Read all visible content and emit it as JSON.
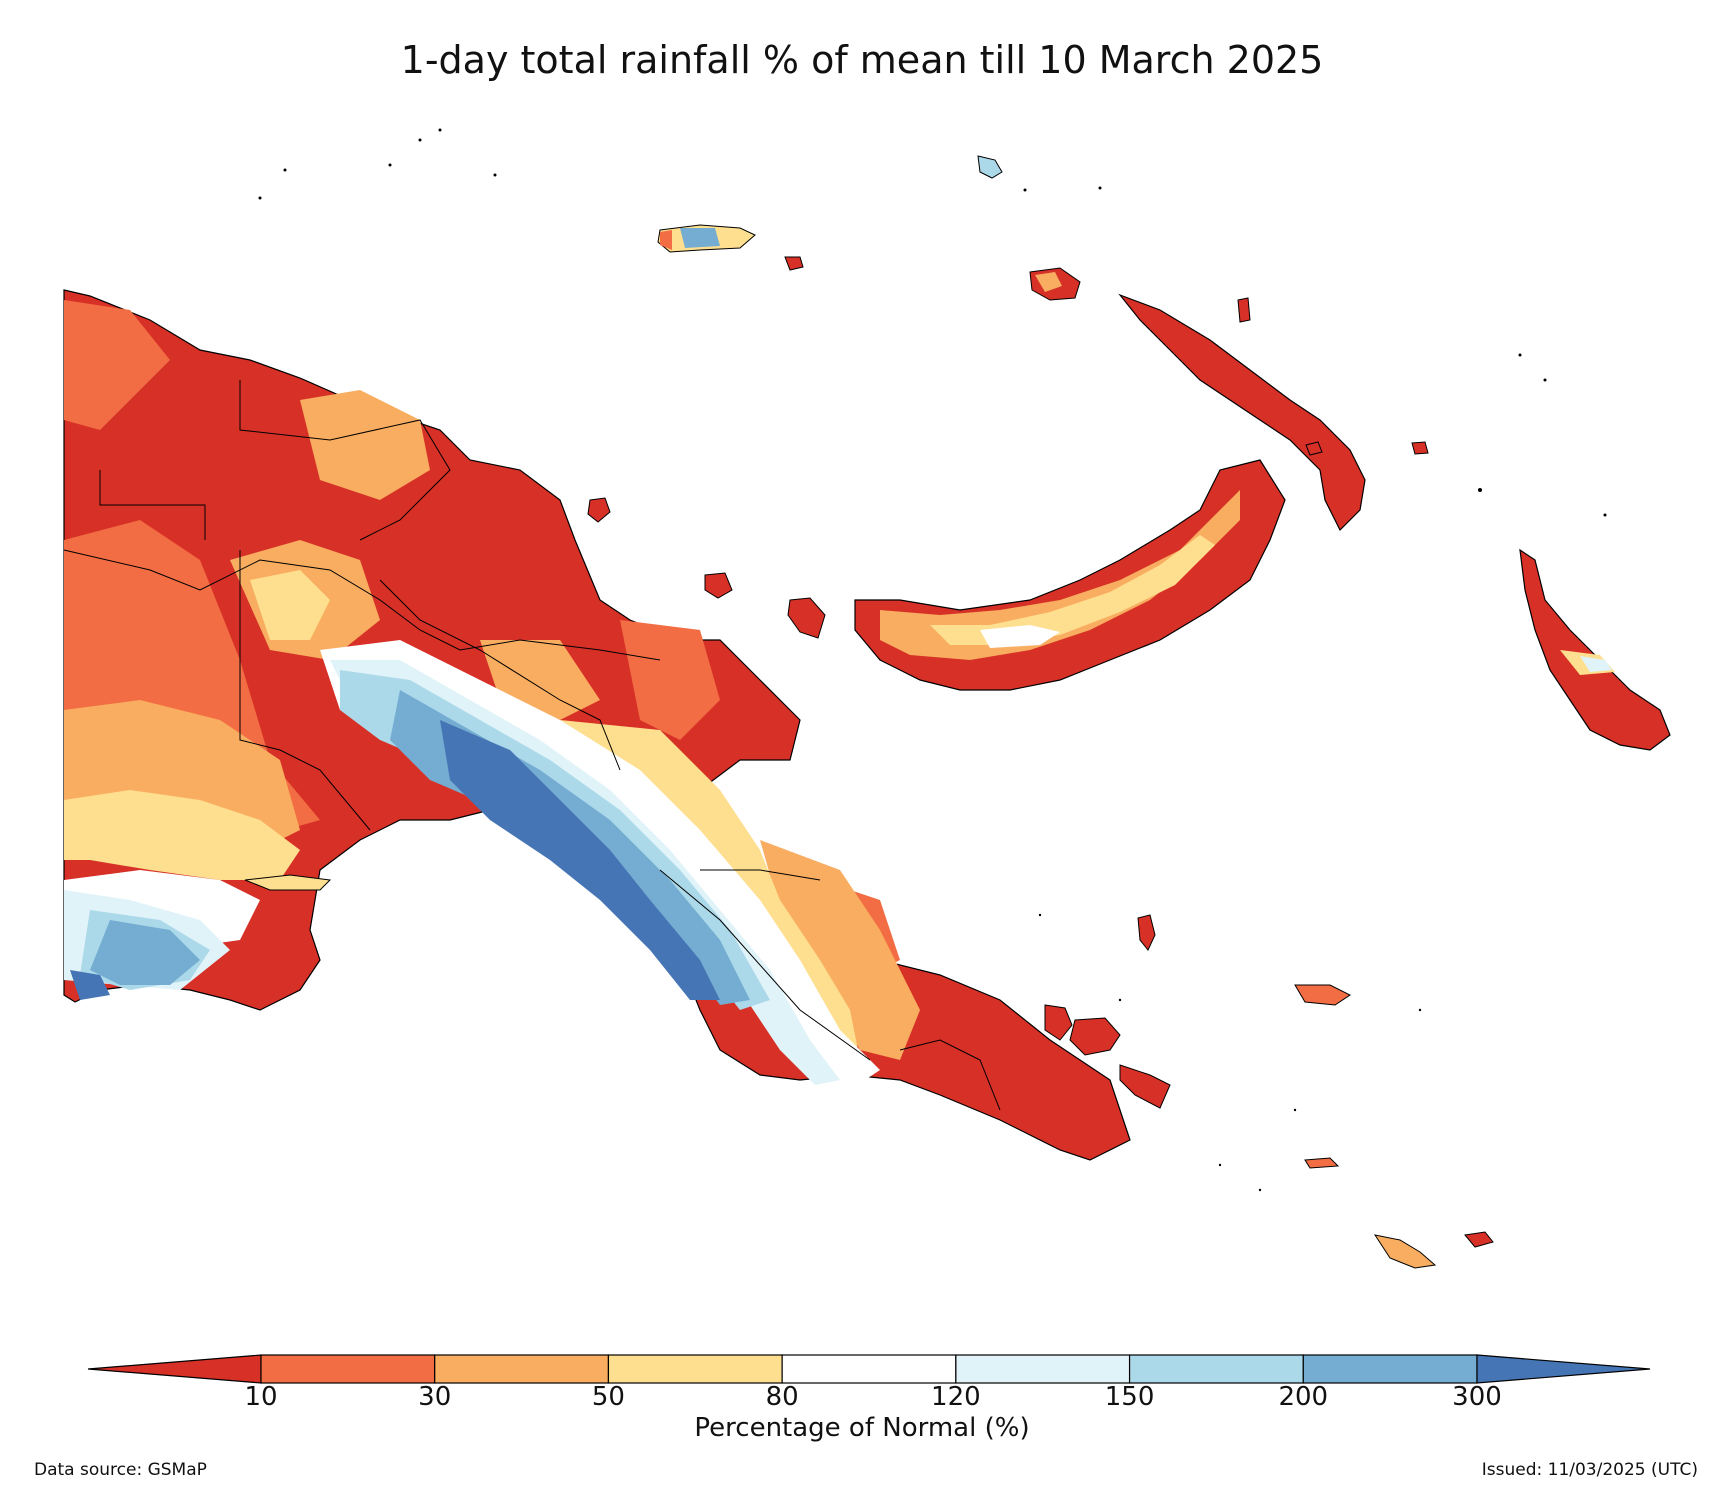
{
  "title": "1-day total rainfall % of mean till 10 March 2025",
  "colorbar": {
    "label": "Percentage of Normal (%)",
    "ticks": [
      "10",
      "30",
      "50",
      "80",
      "120",
      "150",
      "200",
      "300"
    ],
    "colors": [
      "#d73027",
      "#f26d43",
      "#f9ad60",
      "#fedf8f",
      "#ffffff",
      "#e0f3f8",
      "#abd9e9",
      "#74add1",
      "#4575b4"
    ]
  },
  "footer": {
    "source": "Data source: GSMaP",
    "issued": "Issued: 11/03/2025 (UTC)"
  }
}
